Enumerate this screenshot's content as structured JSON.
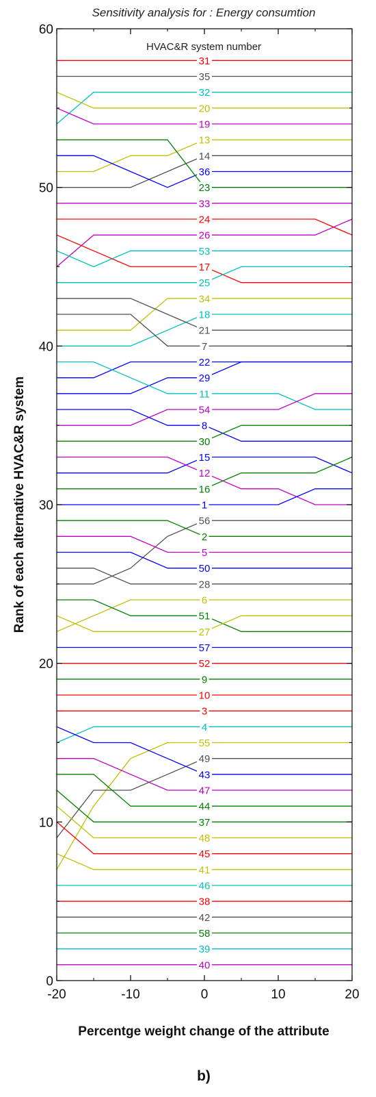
{
  "chart_data": {
    "type": "line",
    "title": "Sensitivity analysis for :  Energy consumtion",
    "xlabel": "Percentge weight change of the attribute",
    "ylabel": "Rank of each alternative HVAC&R system",
    "legend_title": "HVAC&R system number",
    "caption": "b)",
    "xlim": [
      -20,
      20
    ],
    "ylim": [
      0,
      60
    ],
    "x_ticks": [
      "-20",
      "-10",
      "0",
      "10",
      "20"
    ],
    "y_ticks": [
      "0",
      "10",
      "20",
      "30",
      "40",
      "50",
      "60"
    ],
    "x": [
      -20,
      -15,
      -10,
      -5,
      0,
      5,
      10,
      15,
      20
    ],
    "colors": {
      "red": "#ff0000",
      "gray": "#505050",
      "cyan": "#00c0c0",
      "olive": "#c0c000",
      "magenta": "#c000c0",
      "green": "#008000",
      "blue": "#0000ff"
    },
    "series": [
      {
        "name": "31",
        "color": "red",
        "values": [
          58,
          58,
          58,
          58,
          58,
          58,
          58,
          58,
          58
        ]
      },
      {
        "name": "35",
        "color": "gray",
        "values": [
          57,
          57,
          57,
          57,
          57,
          57,
          57,
          57,
          57
        ]
      },
      {
        "name": "32",
        "color": "cyan",
        "values": [
          54,
          56,
          56,
          56,
          56,
          56,
          56,
          56,
          56
        ]
      },
      {
        "name": "20",
        "color": "olive",
        "values": [
          56,
          55,
          55,
          55,
          55,
          55,
          55,
          55,
          55
        ]
      },
      {
        "name": "19",
        "color": "magenta",
        "values": [
          55,
          54,
          54,
          54,
          54,
          54,
          54,
          54,
          54
        ]
      },
      {
        "name": "13",
        "color": "olive",
        "values": [
          51,
          51,
          52,
          52,
          53,
          53,
          53,
          53,
          53
        ]
      },
      {
        "name": "14",
        "color": "gray",
        "values": [
          50,
          50,
          50,
          51,
          52,
          52,
          52,
          52,
          52
        ]
      },
      {
        "name": "36",
        "color": "blue",
        "values": [
          52,
          52,
          51,
          50,
          51,
          51,
          51,
          51,
          51
        ]
      },
      {
        "name": "23",
        "color": "green",
        "values": [
          53,
          53,
          53,
          53,
          50,
          50,
          50,
          50,
          50
        ]
      },
      {
        "name": "33",
        "color": "magenta",
        "values": [
          49,
          49,
          49,
          49,
          49,
          49,
          49,
          49,
          49
        ]
      },
      {
        "name": "24",
        "color": "red",
        "values": [
          48,
          48,
          48,
          48,
          48,
          48,
          48,
          48,
          47
        ]
      },
      {
        "name": "26",
        "color": "magenta",
        "values": [
          45,
          47,
          47,
          47,
          47,
          47,
          47,
          47,
          48
        ]
      },
      {
        "name": "53",
        "color": "cyan",
        "values": [
          46,
          45,
          46,
          46,
          46,
          46,
          46,
          46,
          46
        ]
      },
      {
        "name": "17",
        "color": "red",
        "values": [
          47,
          46,
          45,
          45,
          45,
          44,
          44,
          44,
          44
        ]
      },
      {
        "name": "25",
        "color": "cyan",
        "values": [
          44,
          44,
          44,
          44,
          44,
          45,
          45,
          45,
          45
        ]
      },
      {
        "name": "34",
        "color": "olive",
        "values": [
          41,
          41,
          41,
          43,
          43,
          43,
          43,
          43,
          43
        ]
      },
      {
        "name": "18",
        "color": "cyan",
        "values": [
          40,
          40,
          40,
          41,
          42,
          42,
          42,
          42,
          42
        ]
      },
      {
        "name": "21",
        "color": "gray",
        "values": [
          43,
          43,
          43,
          42,
          41,
          41,
          41,
          41,
          41
        ]
      },
      {
        "name": "7",
        "color": "gray",
        "values": [
          42,
          42,
          42,
          40,
          40,
          40,
          40,
          40,
          40
        ]
      },
      {
        "name": "22",
        "color": "blue",
        "values": [
          38,
          38,
          39,
          39,
          39,
          39,
          39,
          39,
          39
        ]
      },
      {
        "name": "29",
        "color": "blue",
        "values": [
          37,
          37,
          37,
          38,
          38,
          39,
          39,
          39,
          39
        ]
      },
      {
        "name": "11",
        "color": "cyan",
        "values": [
          39,
          39,
          38,
          37,
          37,
          37,
          37,
          36,
          36
        ]
      },
      {
        "name": "54",
        "color": "magenta",
        "values": [
          35,
          35,
          35,
          36,
          36,
          36,
          36,
          37,
          37
        ]
      },
      {
        "name": "8",
        "color": "blue",
        "values": [
          36,
          36,
          36,
          35,
          35,
          34,
          34,
          34,
          34
        ]
      },
      {
        "name": "30",
        "color": "green",
        "values": [
          34,
          34,
          34,
          34,
          34,
          35,
          35,
          35,
          35
        ]
      },
      {
        "name": "15",
        "color": "blue",
        "values": [
          32,
          32,
          32,
          32,
          33,
          33,
          33,
          33,
          32
        ]
      },
      {
        "name": "12",
        "color": "magenta",
        "values": [
          33,
          33,
          33,
          33,
          32,
          31,
          31,
          30,
          30
        ]
      },
      {
        "name": "16",
        "color": "green",
        "values": [
          31,
          31,
          31,
          31,
          31,
          32,
          32,
          32,
          33
        ]
      },
      {
        "name": "1",
        "color": "blue",
        "values": [
          30,
          30,
          30,
          30,
          30,
          30,
          30,
          31,
          31
        ]
      },
      {
        "name": "56",
        "color": "gray",
        "values": [
          25,
          25,
          26,
          28,
          29,
          29,
          29,
          29,
          29
        ]
      },
      {
        "name": "2",
        "color": "green",
        "values": [
          29,
          29,
          29,
          29,
          28,
          28,
          28,
          28,
          28
        ]
      },
      {
        "name": "5",
        "color": "magenta",
        "values": [
          28,
          28,
          28,
          27,
          27,
          27,
          27,
          27,
          27
        ]
      },
      {
        "name": "50",
        "color": "blue",
        "values": [
          27,
          27,
          27,
          26,
          26,
          26,
          26,
          26,
          26
        ]
      },
      {
        "name": "28",
        "color": "gray",
        "values": [
          26,
          26,
          25,
          25,
          25,
          25,
          25,
          25,
          25
        ]
      },
      {
        "name": "6",
        "color": "olive",
        "values": [
          22,
          23,
          24,
          24,
          24,
          24,
          24,
          24,
          24
        ]
      },
      {
        "name": "51",
        "color": "green",
        "values": [
          24,
          24,
          23,
          23,
          23,
          22,
          22,
          22,
          22
        ]
      },
      {
        "name": "27",
        "color": "olive",
        "values": [
          23,
          22,
          22,
          22,
          22,
          23,
          23,
          23,
          23
        ]
      },
      {
        "name": "57",
        "color": "blue",
        "values": [
          21,
          21,
          21,
          21,
          21,
          21,
          21,
          21,
          21
        ]
      },
      {
        "name": "52",
        "color": "red",
        "values": [
          20,
          20,
          20,
          20,
          20,
          20,
          20,
          20,
          20
        ]
      },
      {
        "name": "9",
        "color": "green",
        "values": [
          19,
          19,
          19,
          19,
          19,
          19,
          19,
          19,
          19
        ]
      },
      {
        "name": "10",
        "color": "red",
        "values": [
          18,
          18,
          18,
          18,
          18,
          18,
          18,
          18,
          18
        ]
      },
      {
        "name": "3",
        "color": "red",
        "values": [
          17,
          17,
          17,
          17,
          17,
          17,
          17,
          17,
          17
        ]
      },
      {
        "name": "4",
        "color": "cyan",
        "values": [
          15,
          16,
          16,
          16,
          16,
          16,
          16,
          16,
          16
        ]
      },
      {
        "name": "55",
        "color": "olive",
        "values": [
          7,
          11,
          14,
          15,
          15,
          15,
          15,
          15,
          15
        ]
      },
      {
        "name": "49",
        "color": "gray",
        "values": [
          9,
          12,
          12,
          13,
          14,
          14,
          14,
          14,
          14
        ]
      },
      {
        "name": "43",
        "color": "blue",
        "values": [
          16,
          15,
          15,
          14,
          13,
          13,
          13,
          13,
          13
        ]
      },
      {
        "name": "47",
        "color": "magenta",
        "values": [
          14,
          14,
          13,
          12,
          12,
          12,
          12,
          12,
          12
        ]
      },
      {
        "name": "44",
        "color": "green",
        "values": [
          13,
          13,
          11,
          11,
          11,
          11,
          11,
          11,
          11
        ]
      },
      {
        "name": "37",
        "color": "green",
        "values": [
          12,
          10,
          10,
          10,
          10,
          10,
          10,
          10,
          10
        ]
      },
      {
        "name": "48",
        "color": "olive",
        "values": [
          11,
          9,
          9,
          9,
          9,
          9,
          9,
          9,
          9
        ]
      },
      {
        "name": "45",
        "color": "red",
        "values": [
          10,
          8,
          8,
          8,
          8,
          8,
          8,
          8,
          8
        ]
      },
      {
        "name": "41",
        "color": "olive",
        "values": [
          8,
          7,
          7,
          7,
          7,
          7,
          7,
          7,
          7
        ]
      },
      {
        "name": "46",
        "color": "cyan",
        "values": [
          6,
          6,
          6,
          6,
          6,
          6,
          6,
          6,
          6
        ]
      },
      {
        "name": "38",
        "color": "red",
        "values": [
          5,
          5,
          5,
          5,
          5,
          5,
          5,
          5,
          5
        ]
      },
      {
        "name": "42",
        "color": "gray",
        "values": [
          4,
          4,
          4,
          4,
          4,
          4,
          4,
          4,
          4
        ]
      },
      {
        "name": "58",
        "color": "green",
        "values": [
          3,
          3,
          3,
          3,
          3,
          3,
          3,
          3,
          3
        ]
      },
      {
        "name": "39",
        "color": "cyan",
        "values": [
          2,
          2,
          2,
          2,
          2,
          2,
          2,
          2,
          2
        ]
      },
      {
        "name": "40",
        "color": "magenta",
        "values": [
          1,
          1,
          1,
          1,
          1,
          1,
          1,
          1,
          1
        ]
      }
    ]
  }
}
